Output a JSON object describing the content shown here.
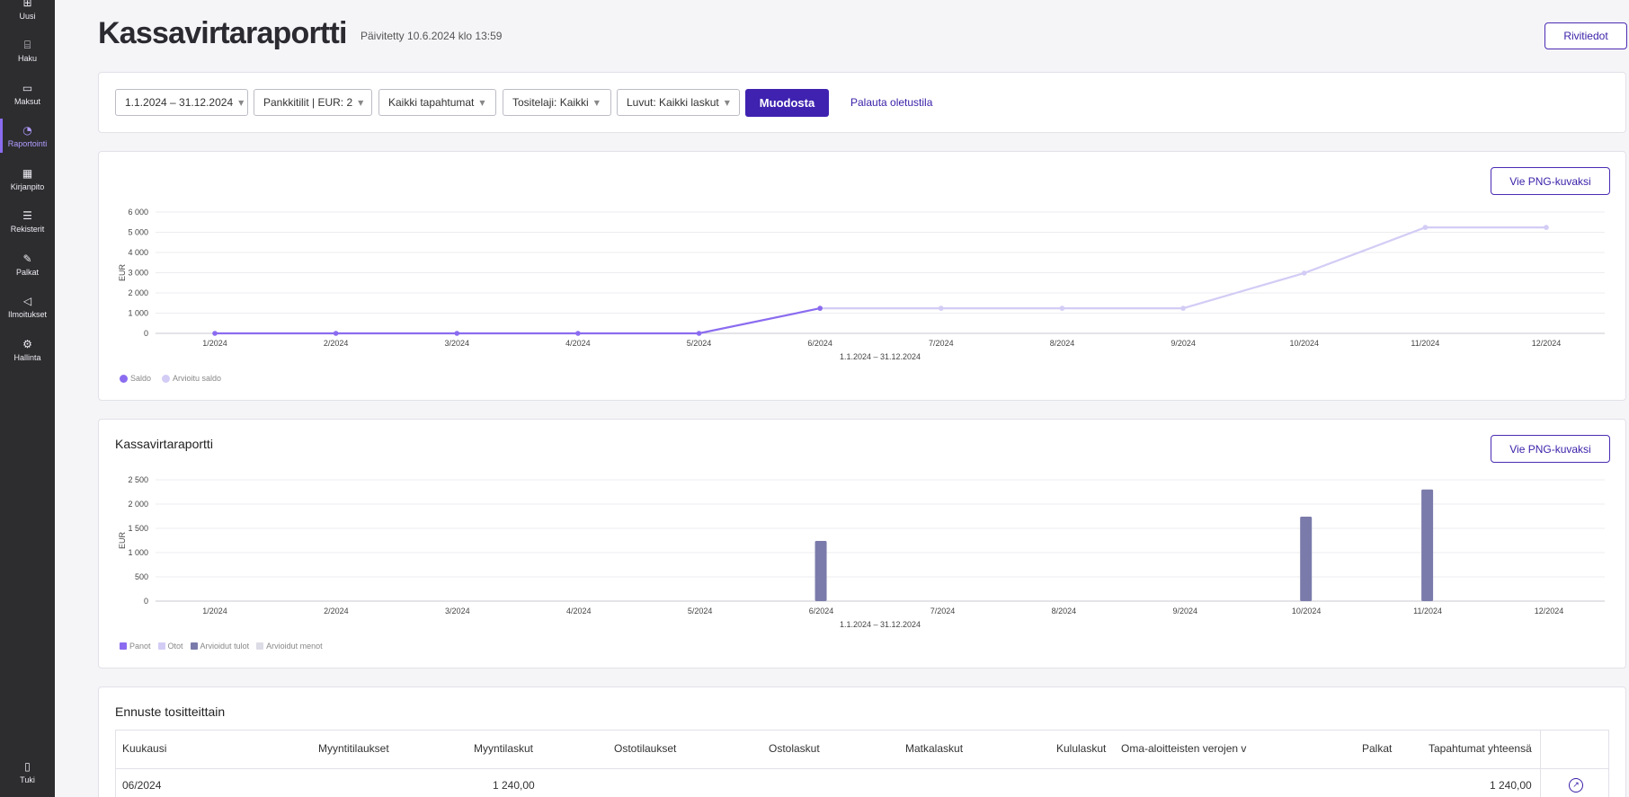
{
  "sidebar": {
    "items": [
      {
        "label": "Uusi",
        "icon": "new-icon"
      },
      {
        "label": "Haku",
        "icon": "search-icon"
      },
      {
        "label": "Maksut",
        "icon": "card-icon"
      },
      {
        "label": "Raportointi",
        "icon": "chart-icon"
      },
      {
        "label": "Kirjanpito",
        "icon": "calculator-icon"
      },
      {
        "label": "Rekisterit",
        "icon": "register-icon"
      },
      {
        "label": "Palkat",
        "icon": "salary-icon"
      },
      {
        "label": "Ilmoitukset",
        "icon": "megaphone-icon"
      },
      {
        "label": "Hallinta",
        "icon": "gear-icon"
      }
    ],
    "active": "Raportointi",
    "support": {
      "label": "Tuki",
      "icon": "book-icon"
    }
  },
  "header": {
    "title": "Kassavirtaraportti",
    "updated": "Päivitetty 10.6.2024 klo 13:59",
    "details_button": "Rivitiedot"
  },
  "filters": {
    "date_range": "1.1.2024 – 31.12.2024",
    "bank_accounts": "Pankkitilit | EUR: 2",
    "events": "Kaikki tapahtumat",
    "voucher_type": "Tositelaji: Kaikki",
    "figures": "Luvut: Kaikki laskut",
    "generate_button": "Muodosta",
    "reset_link": "Palauta oletustila"
  },
  "export_label": "Vie PNG-kuvaksi",
  "colors": {
    "accent": "#3f22b0",
    "saldo": "#8b6cf0",
    "forecast_saldo": "#d3ccf5",
    "forecast_income": "#7b7bab",
    "expense_light": "#d5d5ee"
  },
  "chart_data": [
    {
      "type": "line",
      "title": "",
      "xlabel": "1.1.2024 – 31.12.2024",
      "ylabel": "EUR",
      "x": [
        "1/2024",
        "2/2024",
        "3/2024",
        "4/2024",
        "5/2024",
        "6/2024",
        "7/2024",
        "8/2024",
        "9/2024",
        "10/2024",
        "11/2024",
        "12/2024"
      ],
      "yticks": [
        "0",
        "1 000",
        "2 000",
        "3 000",
        "4 000",
        "5 000",
        "6 000"
      ],
      "ylim": [
        0,
        6000
      ],
      "grid": true,
      "legend_position": "bottom-left",
      "series": [
        {
          "name": "Saldo",
          "values": [
            0,
            0,
            0,
            0,
            0,
            1240,
            null,
            null,
            null,
            null,
            null,
            null
          ]
        },
        {
          "name": "Arvioitu saldo",
          "values": [
            null,
            null,
            null,
            null,
            null,
            1240,
            1240,
            1240,
            1240,
            2980,
            5240,
            5240
          ]
        }
      ]
    },
    {
      "type": "bar",
      "title": "Kassavirtaraportti",
      "xlabel": "1.1.2024 – 31.12.2024",
      "ylabel": "EUR",
      "categories": [
        "1/2024",
        "2/2024",
        "3/2024",
        "4/2024",
        "5/2024",
        "6/2024",
        "7/2024",
        "8/2024",
        "9/2024",
        "10/2024",
        "11/2024",
        "12/2024"
      ],
      "yticks": [
        "0",
        "500",
        "1 000",
        "1 500",
        "2 000",
        "2 500"
      ],
      "ylim": [
        0,
        2500
      ],
      "grid": true,
      "legend_position": "bottom-left",
      "series": [
        {
          "name": "Panot",
          "values": [
            0,
            0,
            0,
            0,
            0,
            0,
            0,
            0,
            0,
            0,
            0,
            0
          ]
        },
        {
          "name": "Otot",
          "values": [
            0,
            0,
            0,
            0,
            0,
            0,
            0,
            0,
            0,
            0,
            0,
            0
          ]
        },
        {
          "name": "Arvioidut tulot",
          "values": [
            0,
            0,
            0,
            0,
            0,
            1240,
            0,
            0,
            0,
            1740,
            2300,
            0
          ]
        },
        {
          "name": "Arvioidut menot",
          "values": [
            0,
            0,
            0,
            0,
            0,
            0,
            0,
            0,
            0,
            0,
            0,
            0
          ]
        }
      ]
    }
  ],
  "table": {
    "title": "Ennuste tositteittain",
    "columns": [
      "Kuukausi",
      "Myyntitilaukset",
      "Myyntilaskut",
      "Ostotilaukset",
      "Ostolaskut",
      "Matkalaskut",
      "Kululaskut",
      "Oma-aloitteisten verojen v",
      "Palkat",
      "Tapahtumat yhteensä"
    ],
    "rows": [
      [
        "06/2024",
        "",
        "1 240,00",
        "",
        "",
        "",
        "",
        "",
        "",
        "1 240,00"
      ]
    ]
  }
}
